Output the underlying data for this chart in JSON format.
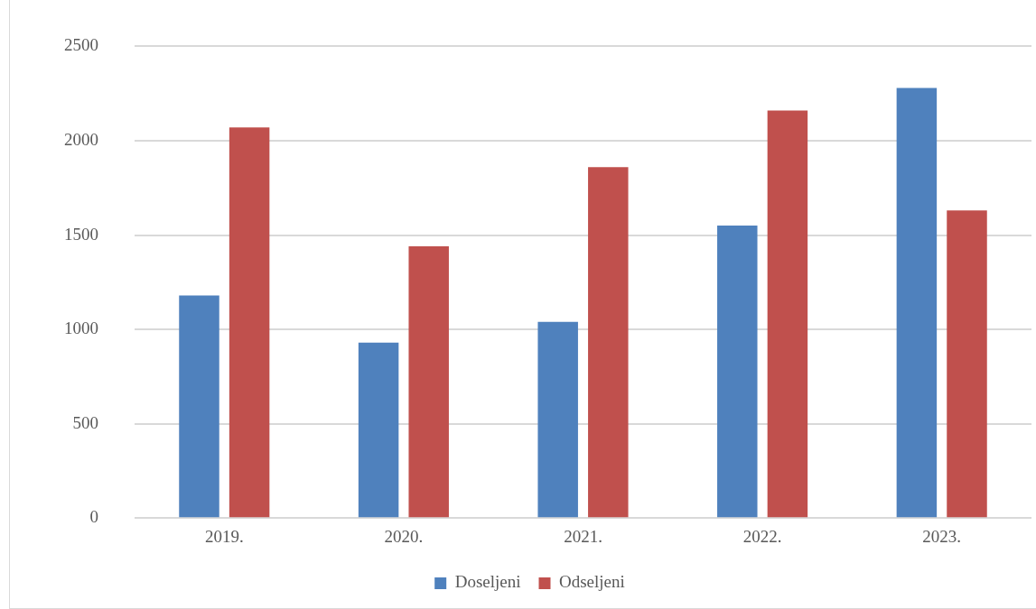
{
  "chart_data": {
    "type": "bar",
    "categories": [
      "2019.",
      "2020.",
      "2021.",
      "2022.",
      "2023."
    ],
    "series": [
      {
        "name": "Doseljeni",
        "color": "#4f81bd",
        "values": [
          1180,
          930,
          1040,
          1550,
          2280
        ]
      },
      {
        "name": "Odseljeni",
        "color": "#c0504d",
        "values": [
          2070,
          1440,
          1860,
          2160,
          1630
        ]
      }
    ],
    "ylim": [
      0,
      2500
    ],
    "yticks": [
      0,
      500,
      1000,
      1500,
      2000,
      2500
    ],
    "grid": "y",
    "legend": "bottom"
  }
}
